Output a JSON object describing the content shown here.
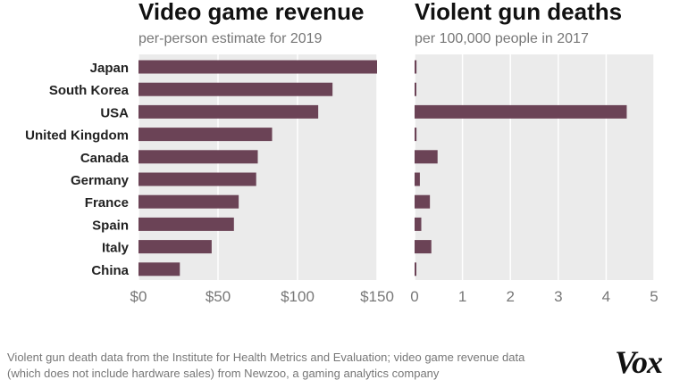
{
  "chart_data": [
    {
      "type": "bar",
      "orientation": "horizontal",
      "title": "Video game revenue",
      "subtitle": "per-person estimate for 2019",
      "categories": [
        "Japan",
        "South Korea",
        "USA",
        "United Kingdom",
        "Canada",
        "Germany",
        "France",
        "Spain",
        "Italy",
        "China"
      ],
      "values": [
        150,
        122,
        113,
        84,
        75,
        74,
        63,
        60,
        46,
        26
      ],
      "xlim": [
        0,
        150
      ],
      "ticks": [
        0,
        50,
        100,
        150
      ],
      "tick_labels": [
        "$0",
        "$50",
        "$100",
        "$150"
      ],
      "color": "#6b4356",
      "background": "#ebebeb",
      "grid": true
    },
    {
      "type": "bar",
      "orientation": "horizontal",
      "title": "Violent gun deaths",
      "subtitle": "per 100,000 people in 2017",
      "categories": [
        "Japan",
        "South Korea",
        "USA",
        "United Kingdom",
        "Canada",
        "Germany",
        "France",
        "Spain",
        "Italy",
        "China"
      ],
      "values": [
        0.04,
        0.02,
        4.43,
        0.04,
        0.48,
        0.11,
        0.32,
        0.14,
        0.35,
        0.03
      ],
      "xlim": [
        0,
        5
      ],
      "ticks": [
        0,
        1,
        2,
        3,
        4,
        5
      ],
      "tick_labels": [
        "0",
        "1",
        "2",
        "3",
        "4",
        "5"
      ],
      "color": "#6b4356",
      "background": "#ebebeb",
      "grid": true
    }
  ],
  "footnote": {
    "line1": "Violent gun death data from the Institute for Health Metrics and Evaluation; video game revenue data",
    "line2": "(which does not include hardware sales) from Newzoo, a gaming analytics company"
  },
  "brand": {
    "logo_text": "Vox"
  },
  "colors": {
    "bar": "#6b4356",
    "plot_bg": "#ebebeb",
    "grid": "#ffffff",
    "text": "#222222",
    "muted": "#777777"
  }
}
